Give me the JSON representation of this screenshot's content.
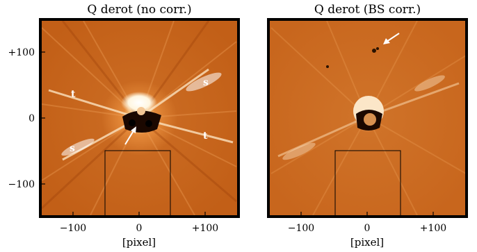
{
  "panels": [
    {
      "title": "Q derot (no corr.)",
      "xlabel": "[pixel]",
      "xticks": [
        "−100",
        "0",
        "+100"
      ],
      "yticks": [
        "+100",
        "0",
        "−100"
      ],
      "markers": [
        "t",
        "s",
        "t",
        "s"
      ]
    },
    {
      "title": "Q derot (BS corr.)",
      "xlabel": "[pixel]",
      "xticks": [
        "−100",
        "0",
        "+100"
      ],
      "yticks": []
    }
  ],
  "colors": {
    "image_bg": "#c8671e",
    "frame": "#000000"
  }
}
